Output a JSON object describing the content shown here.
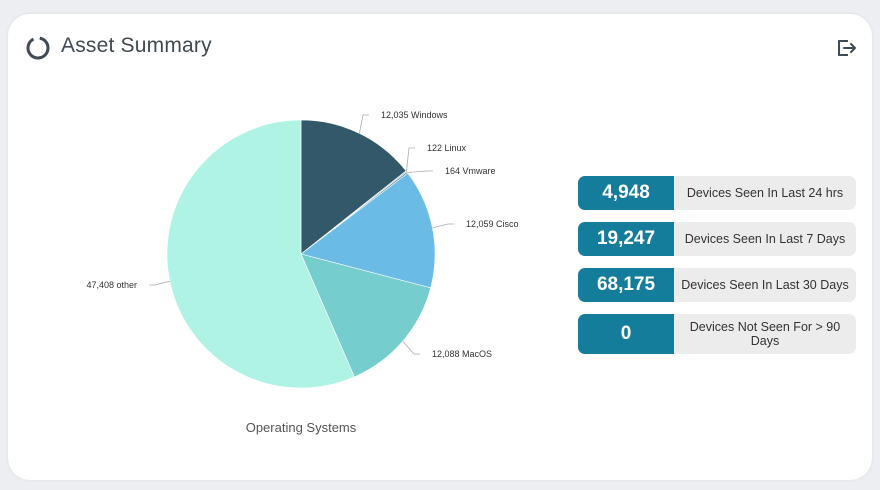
{
  "header": {
    "title": "Asset Summary",
    "export_icon": "export-icon",
    "widget_icon": "ring-icon"
  },
  "chart_data": {
    "type": "pie",
    "title": "Operating Systems",
    "slices": [
      {
        "label": "Windows",
        "value": 12035,
        "value_text": "12,035",
        "color": "#33586a"
      },
      {
        "label": "Linux",
        "value": 122,
        "value_text": "122",
        "color": "#8fb7c4"
      },
      {
        "label": "Vmware",
        "value": 164,
        "value_text": "164",
        "color": "#5d8797"
      },
      {
        "label": "Cisco",
        "value": 12059,
        "value_text": "12,059",
        "color": "#6abce6"
      },
      {
        "label": "MacOS",
        "value": 12088,
        "value_text": "12,088",
        "color": "#75cdcd"
      },
      {
        "label": "other",
        "value": 47408,
        "value_text": "47,408",
        "color": "#aff3e4"
      }
    ]
  },
  "stats": [
    {
      "value": "4,948",
      "label": "Devices Seen In Last 24 hrs"
    },
    {
      "value": "19,247",
      "label": "Devices Seen In Last 7 Days"
    },
    {
      "value": "68,175",
      "label": "Devices Seen In Last 30 Days"
    },
    {
      "value": "0",
      "label": "Devices Not Seen For > 90 Days"
    }
  ],
  "colors": {
    "accent": "#157d9c",
    "label_bg": "#ececec"
  }
}
